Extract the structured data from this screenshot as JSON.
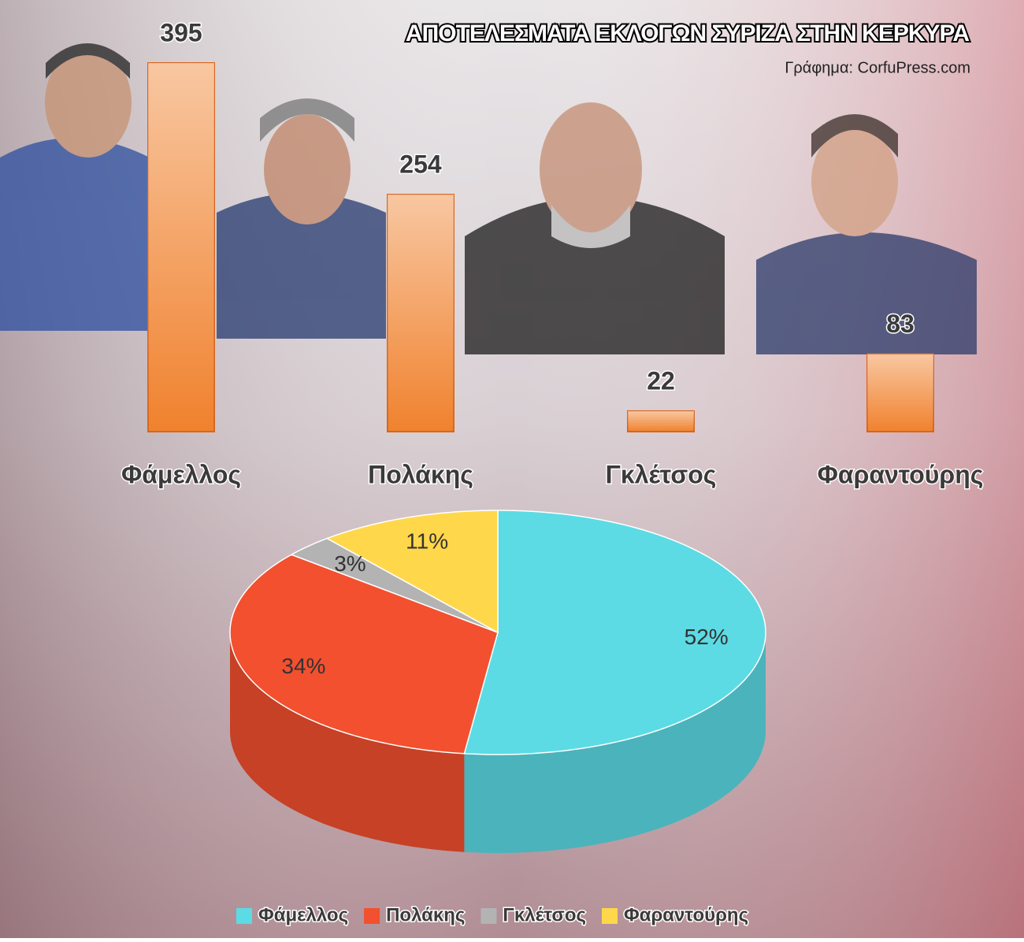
{
  "chart_data": [
    {
      "type": "bar",
      "title": "ΑΠΟΤΕΛΕΣΜΑΤΑ ΕΚΛΟΓΩΝ ΣΥΡΙΖΑ ΣΤΗΝ ΚΕΡΚΥΡΑ",
      "subtitle": "Γράφημα: CorfuPress.com",
      "categories": [
        "Φάμελλος",
        "Πολάκης",
        "Γκλέτσος",
        "Φαραντούρης"
      ],
      "values": [
        395,
        254,
        22,
        83
      ],
      "color": "#f0822e"
    },
    {
      "type": "pie",
      "categories": [
        "Φάμελλος",
        "Πολάκης",
        "Γκλέτσος",
        "Φαραντούρης"
      ],
      "values": [
        52,
        34,
        3,
        11
      ],
      "value_labels": [
        "52%",
        "34%",
        "3%",
        "11%"
      ],
      "colors": [
        "#5cdbe4",
        "#f2502f",
        "#b3b3b3",
        "#ffd74a"
      ],
      "legend": "bottom"
    }
  ]
}
